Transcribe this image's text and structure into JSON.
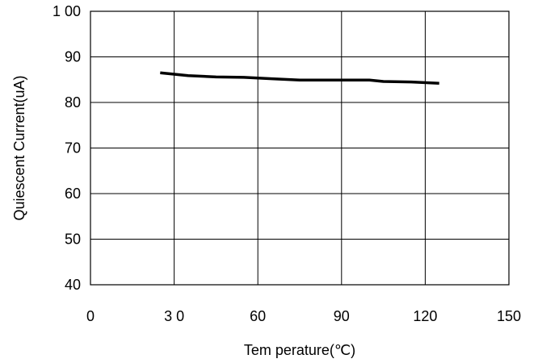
{
  "chart_data": {
    "type": "line",
    "title": "",
    "xlabel": "Tem perature(℃)",
    "ylabel": "Quiescent Current(uA)",
    "xlim": [
      0,
      150
    ],
    "ylim": [
      40,
      100
    ],
    "xticks": [
      0,
      30,
      60,
      90,
      120,
      150
    ],
    "xtick_labels": [
      "0",
      "3 0",
      "60",
      "90",
      "120",
      "150"
    ],
    "yticks": [
      40,
      50,
      60,
      70,
      80,
      90,
      100
    ],
    "ytick_labels": [
      "40",
      "50",
      "60",
      "70",
      "80",
      "90",
      "1 00"
    ],
    "grid": true,
    "legend": "none",
    "series": [
      {
        "x": [
          25,
          35,
          45,
          55,
          65,
          75,
          85,
          95,
          100,
          105,
          115,
          125
        ],
        "y": [
          86.5,
          85.9,
          85.6,
          85.5,
          85.2,
          84.9,
          84.9,
          84.9,
          84.9,
          84.6,
          84.5,
          84.2
        ]
      }
    ],
    "line_color": "#000000"
  }
}
